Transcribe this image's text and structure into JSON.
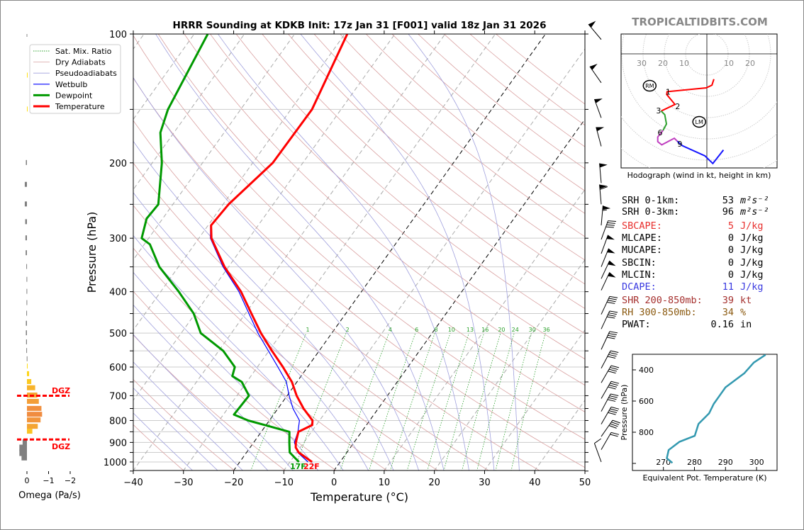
{
  "title": "HRRR Sounding at KDKB Init: 17z Jan 31 [F001] valid 18z Jan 31 2026",
  "watermark": "TROPICALTIDBITS.COM",
  "legend": [
    {
      "label": "Sat. Mix. Ratio",
      "color": "#2ca02c",
      "style": "dotted"
    },
    {
      "label": "Dry Adiabats",
      "color": "#d9a0a0",
      "style": "thin"
    },
    {
      "label": "Pseudoadiabats",
      "color": "#a0a0dd",
      "style": "thin"
    },
    {
      "label": "Wetbulb",
      "color": "#0000ff",
      "style": "solid"
    },
    {
      "label": "Dewpoint",
      "color": "#009900",
      "style": "thick"
    },
    {
      "label": "Temperature",
      "color": "#ff0000",
      "style": "thick"
    }
  ],
  "chart_data": {
    "type": "line",
    "title": "HRRR Sounding at KDKB Init: 17z Jan 31 [F001] valid 18z Jan 31 2026",
    "xlabel": "Temperature (°C)",
    "ylabel": "Pressure (hPa)",
    "xlim": [
      -40,
      50
    ],
    "ylim": [
      1050,
      100
    ],
    "xticks": [
      "−40",
      "−30",
      "−20",
      "−10",
      "0",
      "10",
      "20",
      "30",
      "40",
      "50"
    ],
    "yticks": [
      "100",
      "200",
      "300",
      "400",
      "500",
      "600",
      "700",
      "800",
      "900",
      "1000"
    ],
    "grid": true,
    "legend_position": "top-left",
    "series": [
      {
        "name": "Temperature",
        "color": "#ff0000",
        "points": [
          [
            1000,
            -5.6
          ],
          [
            950,
            -9.6
          ],
          [
            925,
            -10.9
          ],
          [
            900,
            -11.6
          ],
          [
            850,
            -12.6
          ],
          [
            820,
            -10.8
          ],
          [
            800,
            -11.4
          ],
          [
            750,
            -14.9
          ],
          [
            700,
            -18.1
          ],
          [
            650,
            -21
          ],
          [
            600,
            -24.9
          ],
          [
            550,
            -29.4
          ],
          [
            500,
            -34.1
          ],
          [
            450,
            -38.8
          ],
          [
            400,
            -44
          ],
          [
            350,
            -50.8
          ],
          [
            300,
            -57.5
          ],
          [
            280,
            -59.4
          ],
          [
            250,
            -58.9
          ],
          [
            200,
            -56
          ],
          [
            150,
            -55.8
          ],
          [
            100,
            -59.5
          ]
        ]
      },
      {
        "name": "Dewpoint",
        "color": "#009900",
        "points": [
          [
            1000,
            -8.2
          ],
          [
            950,
            -11.4
          ],
          [
            900,
            -12.9
          ],
          [
            850,
            -14.4
          ],
          [
            800,
            -24.2
          ],
          [
            775,
            -27.9
          ],
          [
            700,
            -27.6
          ],
          [
            650,
            -31
          ],
          [
            630,
            -33.7
          ],
          [
            600,
            -34.5
          ],
          [
            550,
            -39.1
          ],
          [
            500,
            -46.1
          ],
          [
            450,
            -50.3
          ],
          [
            400,
            -56.4
          ],
          [
            350,
            -63.8
          ],
          [
            310,
            -68.9
          ],
          [
            300,
            -71.4
          ],
          [
            270,
            -73.2
          ],
          [
            250,
            -72.9
          ],
          [
            200,
            -78.1
          ],
          [
            170,
            -82.7
          ],
          [
            150,
            -84.5
          ],
          [
            100,
            -87.3
          ]
        ]
      },
      {
        "name": "Wetbulb",
        "color": "#0000ff",
        "points": [
          [
            1000,
            -6.4
          ],
          [
            950,
            -9.8
          ],
          [
            900,
            -11.9
          ],
          [
            850,
            -12.7
          ],
          [
            800,
            -14
          ],
          [
            750,
            -17
          ],
          [
            700,
            -19.6
          ],
          [
            650,
            -22.1
          ],
          [
            600,
            -25.9
          ],
          [
            550,
            -30.1
          ],
          [
            500,
            -34.7
          ],
          [
            450,
            -39.3
          ],
          [
            400,
            -44.4
          ],
          [
            350,
            -51.1
          ],
          [
            300,
            -57.7
          ],
          [
            280,
            -59.5
          ],
          [
            250,
            -59
          ],
          [
            200,
            -56.1
          ],
          [
            150,
            -55.9
          ],
          [
            100,
            -59.6
          ]
        ]
      }
    ],
    "isotherms_highlighted": [
      0,
      -20
    ],
    "mixing_ratio_labels": [
      "1",
      "2",
      "4",
      "6",
      "8",
      "10",
      "13",
      "16",
      "20",
      "24",
      "30",
      "36"
    ],
    "surface_labels": {
      "dewpoint": "17F",
      "temperature": "22F"
    },
    "wind_barbs": [
      {
        "p": 103,
        "speed": 50,
        "dir": 320
      },
      {
        "p": 130,
        "speed": 50,
        "dir": 325
      },
      {
        "p": 157,
        "speed": 50,
        "dir": 340
      },
      {
        "p": 183,
        "speed": 50,
        "dir": 345
      },
      {
        "p": 223,
        "speed": 50,
        "dir": 355
      },
      {
        "p": 250,
        "speed": 60,
        "dir": 355
      },
      {
        "p": 280,
        "speed": 55,
        "dir": 5
      },
      {
        "p": 302,
        "speed": 40,
        "dir": 20
      },
      {
        "p": 326,
        "speed": 50,
        "dir": 20
      },
      {
        "p": 350,
        "speed": 50,
        "dir": 22
      },
      {
        "p": 373,
        "speed": 50,
        "dir": 25
      },
      {
        "p": 397,
        "speed": 50,
        "dir": 25
      },
      {
        "p": 452,
        "speed": 40,
        "dir": 25
      },
      {
        "p": 489,
        "speed": 40,
        "dir": 25
      },
      {
        "p": 546,
        "speed": 40,
        "dir": 25
      },
      {
        "p": 604,
        "speed": 40,
        "dir": 28
      },
      {
        "p": 653,
        "speed": 40,
        "dir": 30
      },
      {
        "p": 711,
        "speed": 40,
        "dir": 30
      },
      {
        "p": 762,
        "speed": 40,
        "dir": 28
      },
      {
        "p": 816,
        "speed": 40,
        "dir": 30
      },
      {
        "p": 872,
        "speed": 40,
        "dir": 35
      },
      {
        "p": 936,
        "speed": 20,
        "dir": 30
      },
      {
        "p": 1000,
        "speed": 10,
        "dir": 340
      }
    ]
  },
  "omega": {
    "xlabel": "Omega (Pa/s)",
    "xticks": [
      "0",
      "−1",
      "−2"
    ],
    "values": [
      [
        125,
        -0.02
      ],
      [
        150,
        -0.02
      ],
      [
        200,
        0.05
      ],
      [
        225,
        0.1
      ],
      [
        250,
        0.1
      ],
      [
        275,
        0.08
      ],
      [
        300,
        0.07
      ],
      [
        325,
        0.06
      ],
      [
        350,
        0.03
      ],
      [
        375,
        0.02
      ],
      [
        400,
        0.02
      ],
      [
        425,
        0.02
      ],
      [
        450,
        0.03
      ],
      [
        475,
        0.05
      ],
      [
        500,
        0.05
      ],
      [
        525,
        0.04
      ],
      [
        550,
        0.03
      ],
      [
        575,
        0.01
      ],
      [
        598,
        -0.03
      ],
      [
        623,
        -0.1
      ],
      [
        650,
        -0.2
      ],
      [
        672,
        -0.38
      ],
      [
        699,
        -0.48
      ],
      [
        723,
        -0.55
      ],
      [
        751,
        -0.67
      ],
      [
        775,
        -0.7
      ],
      [
        799,
        -0.63
      ],
      [
        827,
        -0.5
      ],
      [
        849,
        -0.25
      ],
      [
        899,
        0.2
      ],
      [
        925,
        0.35
      ],
      [
        950,
        0.35
      ],
      [
        973,
        0.25
      ]
    ],
    "dgz": {
      "label": "DGZ",
      "top_p": 700,
      "bottom_p": 886,
      "color": "#ff0000"
    }
  },
  "hodograph": {
    "caption": "Hodograph (wind in kt, height in km)",
    "ring_labels_left": [
      "30",
      "20",
      "10"
    ],
    "ring_labels_right": [
      "10",
      "20"
    ],
    "segments": [
      {
        "layer": "0-3 km",
        "color": "#ff0000",
        "uv": [
          [
            3.3,
            -11.9
          ],
          [
            2.4,
            -14.7
          ],
          [
            -0.3,
            -16
          ],
          [
            -18.7,
            -17.8
          ],
          [
            -18.9,
            -19.1
          ],
          [
            -15,
            -23.8
          ],
          [
            -21.5,
            -26.9
          ]
        ]
      },
      {
        "layer": "3-6 km",
        "color": "#2ca02c",
        "uv": [
          [
            -21.5,
            -26.9
          ],
          [
            -19.8,
            -28.6
          ],
          [
            -19,
            -33
          ],
          [
            -20.6,
            -36
          ]
        ]
      },
      {
        "layer": "6-9 km",
        "color": "#c040c0",
        "uv": [
          [
            -20.6,
            -36
          ],
          [
            -23.1,
            -39.1
          ],
          [
            -23.1,
            -41.3
          ],
          [
            -21.2,
            -42.8
          ],
          [
            -15.3,
            -39.7
          ],
          [
            -13.9,
            -41.1
          ]
        ]
      },
      {
        "layer": "9+ km",
        "color": "#1515ff",
        "uv": [
          [
            -13.9,
            -41.1
          ],
          [
            -11.5,
            -43.2
          ],
          [
            -0.9,
            -48
          ],
          [
            2.8,
            -51.6
          ],
          [
            7.8,
            -45.2
          ]
        ]
      }
    ],
    "height_labels": [
      {
        "text": "1",
        "u": -18.2,
        "v": -17.8
      },
      {
        "text": "2",
        "u": -13.7,
        "v": -24.7
      },
      {
        "text": "3",
        "u": -22.7,
        "v": -26.7
      },
      {
        "text": "6",
        "u": -22,
        "v": -37
      },
      {
        "text": "9",
        "u": -12.7,
        "v": -42.3
      }
    ],
    "storm_motion": [
      {
        "text": "RM",
        "u": -26.9,
        "v": -15
      },
      {
        "text": "LM",
        "u": -3.6,
        "v": -32
      }
    ]
  },
  "stats": [
    {
      "label": "SRH 0-1km:",
      "value": "53",
      "unit": "m²s⁻²",
      "color": "#000000"
    },
    {
      "label": "SRH 0-3km:",
      "value": "96",
      "unit": "m²s⁻²",
      "color": "#000000"
    },
    {
      "label": "SBCAPE:",
      "value": "5",
      "unit": "J/kg",
      "color": "#e8302e"
    },
    {
      "label": "MLCAPE:",
      "value": "0",
      "unit": "J/kg",
      "color": "#000000"
    },
    {
      "label": "MUCAPE:",
      "value": "0",
      "unit": "J/kg",
      "color": "#000000"
    },
    {
      "label": "SBCIN:",
      "value": "0",
      "unit": "J/kg",
      "color": "#000000"
    },
    {
      "label": "MLCIN:",
      "value": "0",
      "unit": "J/kg",
      "color": "#000000"
    },
    {
      "label": "DCAPE:",
      "value": "11",
      "unit": "J/kg",
      "color": "#3a3ae0"
    },
    {
      "label": "SHR 200-850mb:",
      "value": "39",
      "unit": "kt",
      "color": "#a5302e"
    },
    {
      "label": "RH 300-850mb:",
      "value": "34",
      "unit": "%",
      "color": "#8b5a10"
    },
    {
      "label": "PWAT:",
      "value": "0.16",
      "unit": "in",
      "color": "#000000"
    }
  ],
  "theta_e": {
    "xlabel": "Equivalent Pot. Temperature (K)",
    "ylabel": "Pressure (hPa)",
    "xticks": [
      "270",
      "280",
      "290",
      "300"
    ],
    "yticks": [
      "400",
      "600",
      "800"
    ],
    "color": "#3399b0",
    "points": [
      [
        303,
        302.9
      ],
      [
        353,
        299.1
      ],
      [
        421,
        296.1
      ],
      [
        512,
        290
      ],
      [
        618,
        286.2
      ],
      [
        679,
        284.7
      ],
      [
        747,
        281.3
      ],
      [
        823,
        280.1
      ],
      [
        861,
        275.2
      ],
      [
        914,
        271.7
      ],
      [
        967,
        271.1
      ],
      [
        997,
        272.9
      ]
    ]
  }
}
